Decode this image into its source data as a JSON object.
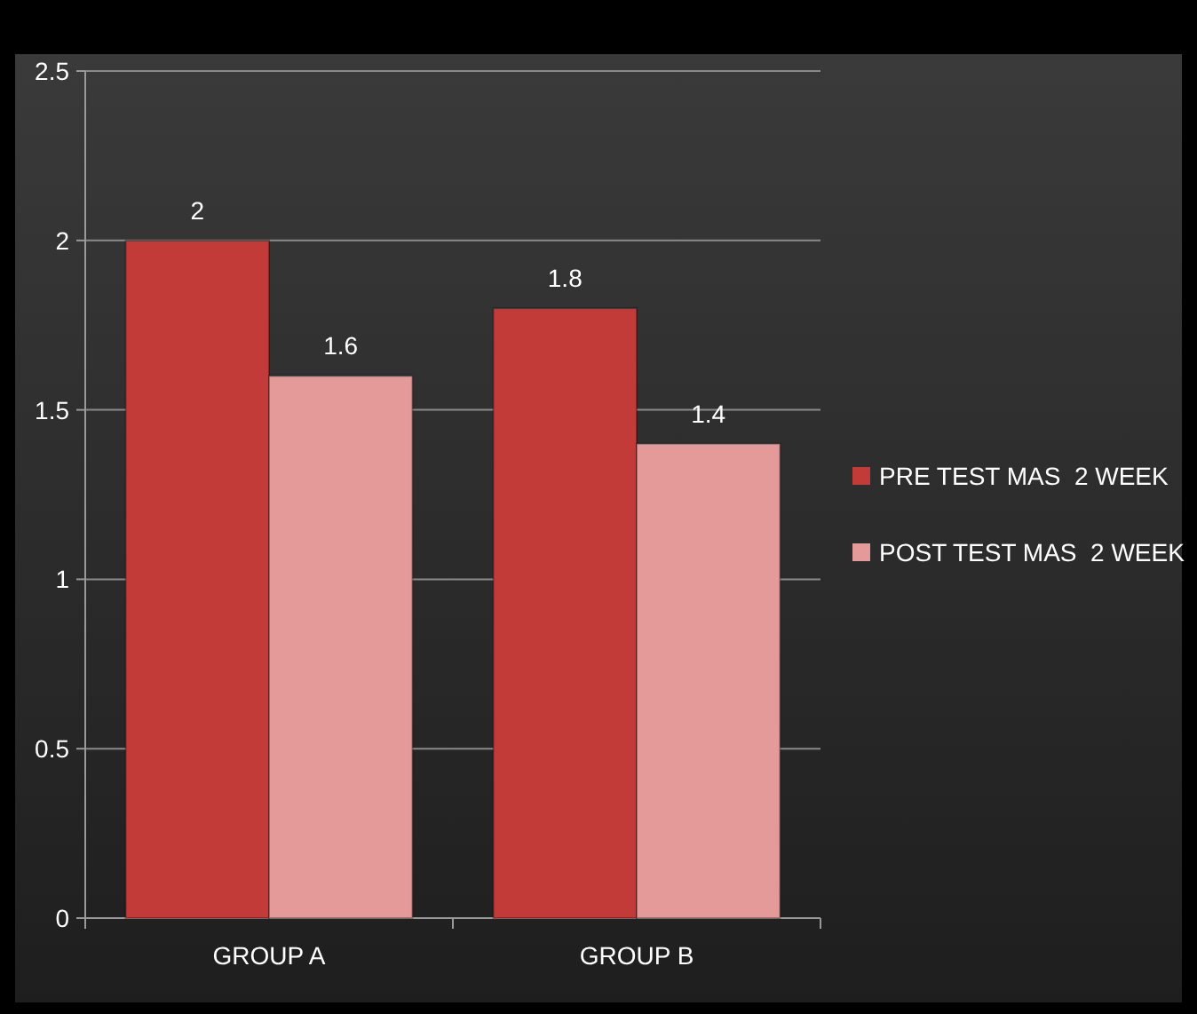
{
  "chart_data": {
    "type": "bar",
    "categories": [
      "GROUP A",
      "GROUP B"
    ],
    "series": [
      {
        "name": "PRE TEST MAS  2 WEEK",
        "color": "#c23b38",
        "values": [
          2,
          1.8
        ]
      },
      {
        "name": "POST TEST MAS  2 WEEK",
        "color": "#e59a9a",
        "values": [
          1.6,
          1.4
        ]
      }
    ],
    "ylim": [
      0,
      2.5
    ],
    "yticks": [
      0,
      0.5,
      1,
      1.5,
      2,
      2.5
    ],
    "grid": "y",
    "legend": "right",
    "data_labels": true
  }
}
